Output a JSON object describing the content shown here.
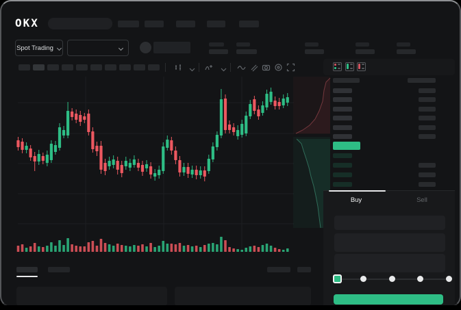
{
  "window": {
    "logo_text": "OKX"
  },
  "market_bar": {
    "selector_label": "Spot Trading"
  },
  "order_form": {
    "buy_tab_label": "Buy",
    "sell_tab_label": "Sell",
    "slider_percent": 0,
    "slider_stops": 5
  },
  "orderbook": {
    "ask_rows": 6,
    "bid_rows": 4
  },
  "colors": {
    "up": "#2EBD85",
    "down": "#EC5860",
    "accent_button": "#2EBD85",
    "tab_indicator": "#E9EAEB",
    "grid": "#1c1e21"
  },
  "chart_data": {
    "type": "candlestick",
    "legend_position": "none",
    "grid": true,
    "candles": [
      [
        127,
        132,
        112,
        117
      ],
      [
        125,
        130,
        108,
        113
      ],
      [
        113,
        124,
        108,
        119
      ],
      [
        115,
        120,
        97,
        102
      ],
      [
        104,
        110,
        82,
        96
      ],
      [
        96,
        113,
        91,
        107
      ],
      [
        104,
        109,
        92,
        97
      ],
      [
        94,
        112,
        89,
        106
      ],
      [
        98,
        127,
        94,
        122
      ],
      [
        110,
        126,
        106,
        120
      ],
      [
        116,
        152,
        112,
        146
      ],
      [
        134,
        148,
        130,
        142
      ],
      [
        134,
        183,
        130,
        170
      ],
      [
        169,
        174,
        156,
        161
      ],
      [
        166,
        172,
        152,
        157
      ],
      [
        164,
        170,
        148,
        154
      ],
      [
        162,
        167,
        152,
        157
      ],
      [
        166,
        172,
        134,
        139
      ],
      [
        140,
        146,
        109,
        114
      ],
      [
        119,
        125,
        104,
        111
      ],
      [
        119,
        126,
        78,
        84
      ],
      [
        94,
        100,
        76,
        82
      ],
      [
        89,
        103,
        84,
        97
      ],
      [
        91,
        105,
        86,
        99
      ],
      [
        97,
        103,
        77,
        84
      ],
      [
        91,
        97,
        73,
        79
      ],
      [
        89,
        103,
        84,
        97
      ],
      [
        87,
        100,
        82,
        94
      ],
      [
        91,
        105,
        87,
        99
      ],
      [
        94,
        100,
        82,
        87
      ],
      [
        91,
        97,
        75,
        81
      ],
      [
        86,
        98,
        81,
        92
      ],
      [
        89,
        95,
        71,
        77
      ],
      [
        74,
        85,
        68,
        79
      ],
      [
        76,
        90,
        71,
        84
      ],
      [
        82,
        124,
        78,
        118
      ],
      [
        116,
        134,
        112,
        128
      ],
      [
        127,
        132,
        106,
        112
      ],
      [
        112,
        118,
        92,
        98
      ],
      [
        98,
        104,
        74,
        80
      ],
      [
        80,
        94,
        75,
        88
      ],
      [
        88,
        94,
        72,
        78
      ],
      [
        77,
        90,
        72,
        84
      ],
      [
        84,
        90,
        70,
        76
      ],
      [
        76,
        89,
        71,
        83
      ],
      [
        83,
        89,
        67,
        74
      ],
      [
        82,
        106,
        78,
        100
      ],
      [
        99,
        124,
        95,
        118
      ],
      [
        117,
        140,
        112,
        135
      ],
      [
        134,
        202,
        130,
        187
      ],
      [
        188,
        194,
        137,
        142
      ],
      [
        150,
        156,
        137,
        142
      ],
      [
        146,
        152,
        134,
        139
      ],
      [
        133,
        149,
        128,
        142
      ],
      [
        135,
        157,
        131,
        151
      ],
      [
        137,
        169,
        133,
        163
      ],
      [
        162,
        186,
        158,
        180
      ],
      [
        187,
        192,
        165,
        170
      ],
      [
        172,
        178,
        157,
        162
      ],
      [
        167,
        184,
        163,
        178
      ],
      [
        175,
        201,
        171,
        195
      ],
      [
        183,
        204,
        179,
        198
      ],
      [
        185,
        191,
        172,
        177
      ],
      [
        183,
        189,
        172,
        177
      ],
      [
        178,
        194,
        174,
        188
      ],
      [
        182,
        196,
        177,
        190
      ]
    ],
    "volume": [
      9,
      11,
      6,
      8,
      13,
      8,
      7,
      9,
      14,
      9,
      17,
      10,
      20,
      11,
      9,
      8,
      8,
      14,
      16,
      9,
      19,
      13,
      11,
      9,
      12,
      10,
      9,
      8,
      10,
      9,
      11,
      8,
      13,
      7,
      9,
      16,
      12,
      12,
      11,
      13,
      9,
      10,
      8,
      9,
      7,
      10,
      12,
      13,
      11,
      22,
      17,
      7,
      5,
      4,
      3,
      6,
      8,
      9,
      7,
      10,
      12,
      9,
      6,
      4,
      3,
      5
    ]
  }
}
